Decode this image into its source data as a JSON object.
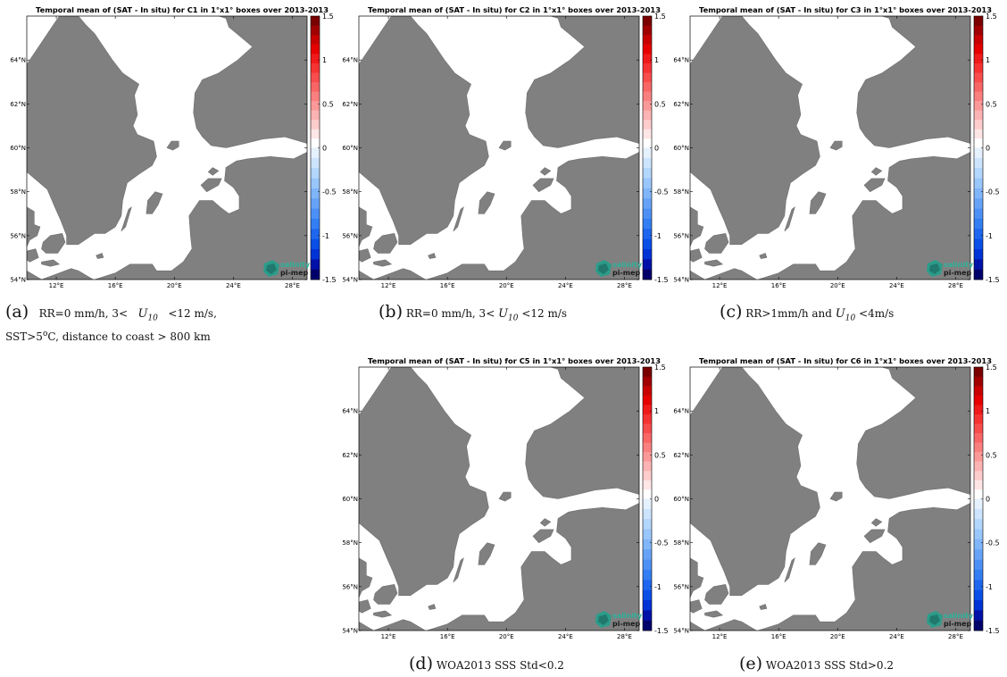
{
  "panels": [
    {
      "id": "a",
      "title": "Temporal mean of (SAT - In situ) for C1 in 1°x1° boxes over 2013-2013"
    },
    {
      "id": "b",
      "title": "Temporal mean of (SAT - In situ) for C2 in 1°x1° boxes over 2013-2013"
    },
    {
      "id": "c",
      "title": "Temporal mean of (SAT - In situ) for C3 in 1°x1° boxes over 2013-2013"
    },
    {
      "id": "d",
      "title": "Temporal mean of (SAT - In situ) for C5 in 1°x1° boxes over 2013-2013"
    },
    {
      "id": "e",
      "title": "Temporal mean of (SAT - In situ) for C6 in 1°x1° boxes over 2013-2013"
    }
  ],
  "map": {
    "lon_range": [
      10,
      29
    ],
    "lat_range": [
      54,
      66
    ],
    "lon_ticks": [
      "12°E",
      "16°E",
      "20°E",
      "24°E",
      "28°E"
    ],
    "lat_ticks": [
      "54°N",
      "56°N",
      "58°N",
      "60°N",
      "62°N",
      "64°N"
    ],
    "land_color": "#808080",
    "sea_color": "#ffffff"
  },
  "colorbar": {
    "range": [
      -1.5,
      1.5
    ],
    "tick_labels": [
      "1.5",
      "1",
      "0.5",
      "0",
      "-0.5",
      "-1",
      "-1.5"
    ],
    "colors_neg": [
      "#00006b",
      "#0011a8",
      "#0033d6",
      "#0a4fe6",
      "#1f66ee",
      "#337ef2",
      "#4d90f5",
      "#66a3f7",
      "#80b5f9",
      "#99c6fb",
      "#b3d6fc",
      "#cce4fd",
      "#e6f1fe"
    ],
    "colors_pos": [
      "#ffffff",
      "#fee6e6",
      "#fdcccc",
      "#fcb3b3",
      "#fb9999",
      "#fa8080",
      "#f86666",
      "#f74d4d",
      "#f53333",
      "#f01a1a",
      "#e60000",
      "#c80000",
      "#a00000",
      "#7a0000"
    ]
  },
  "logo": {
    "line1": "salinity",
    "line2": "pi-mep"
  },
  "captions": {
    "a": {
      "label": "(a)",
      "text1": "RR=0 mm/h, 3<",
      "sym": "U",
      "sub": "10",
      "text2": "<12 m/s,",
      "text3": "SST>5",
      "deg": "o",
      "text4": "C, distance to coast > 800 km"
    },
    "b": {
      "label": "(b)",
      "text1": "RR=0 mm/h, 3<",
      "sym": "U",
      "sub": "10",
      "text2": "<12 m/s"
    },
    "c": {
      "label": "(c)",
      "text1": "RR>1mm/h and",
      "sym": "U",
      "sub": "10",
      "text2": "<4m/s"
    },
    "d": {
      "label": "(d)",
      "text1": "WOA2013 SSS Std<0.2"
    },
    "e": {
      "label": "(e)",
      "text1": "WOA2013 SSS Std>0.2"
    }
  }
}
